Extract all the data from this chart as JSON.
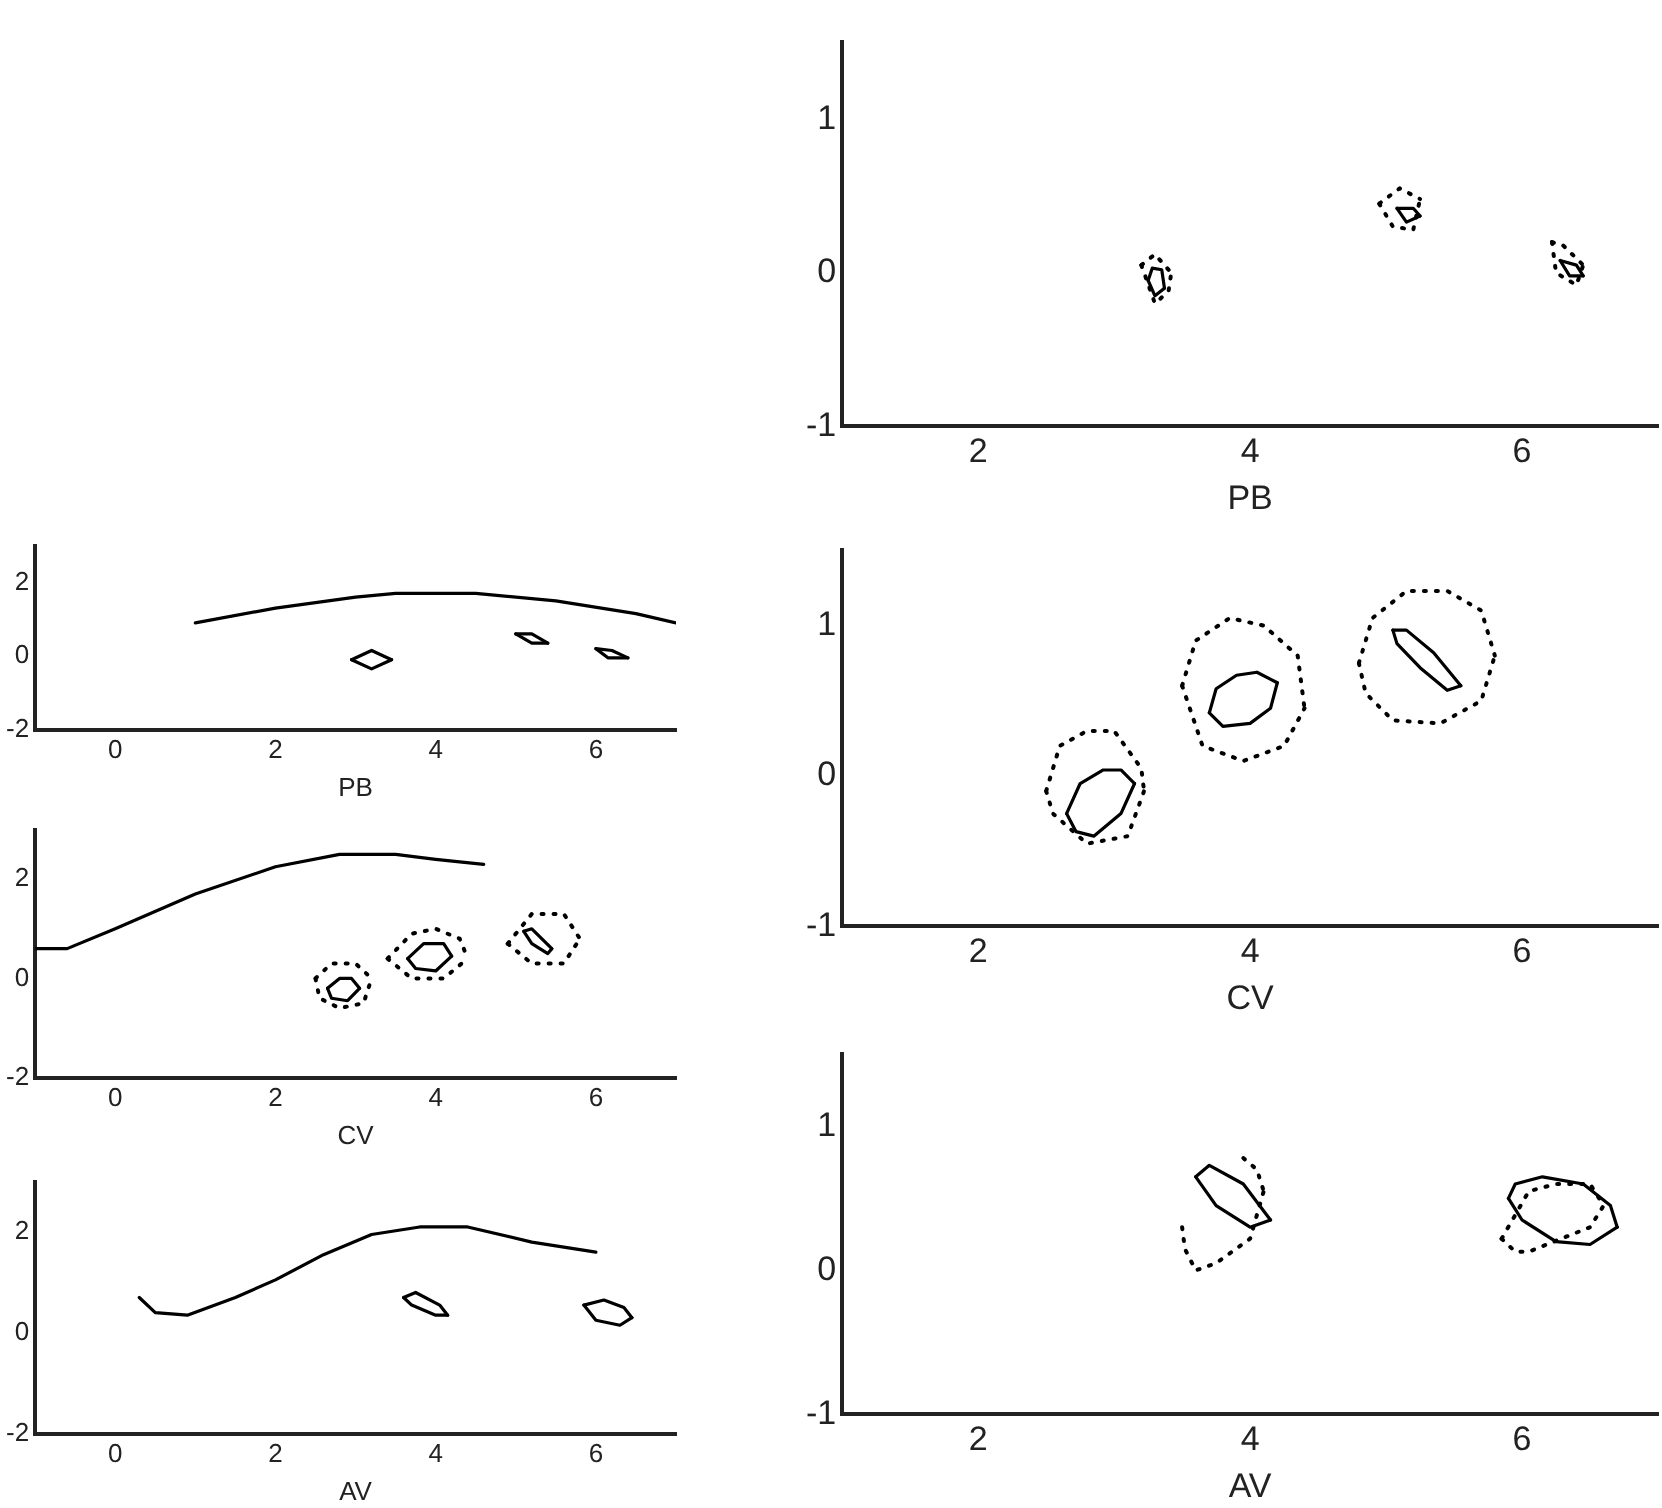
{
  "chart_data": [
    {
      "type": "line",
      "xlabel": "PB",
      "xlim": [
        -1,
        7
      ],
      "xticks": [
        0,
        2,
        4,
        6
      ],
      "ylim": [
        -2,
        3
      ],
      "yticks": [
        -2,
        0,
        2
      ],
      "grid": false,
      "marker": "none",
      "series": [
        {
          "color": "#000000",
          "line_style": "solid",
          "x": [
            1,
            2,
            3,
            3.5,
            4.5,
            5.5,
            6.5,
            7
          ],
          "values": [
            0.9,
            1.3,
            1.6,
            1.7,
            1.7,
            1.5,
            1.15,
            0.9
          ]
        },
        {
          "color": "#000000",
          "line_style": "solid",
          "x": [
            2.95,
            3.2,
            3.45
          ],
          "values": [
            -0.1,
            0.15,
            -0.1
          ]
        },
        {
          "color": "#000000",
          "line_style": "solid",
          "x": [
            2.95,
            3.2,
            3.45
          ],
          "values": [
            -0.1,
            -0.35,
            -0.1
          ]
        },
        {
          "color": "#000000",
          "line_style": "solid",
          "x": [
            5,
            5.2,
            5.4
          ],
          "values": [
            0.6,
            0.6,
            0.35
          ]
        },
        {
          "color": "#000000",
          "line_style": "solid",
          "x": [
            5,
            5.2,
            5.4
          ],
          "values": [
            0.6,
            0.35,
            0.35
          ]
        },
        {
          "color": "#000000",
          "line_style": "solid",
          "x": [
            6,
            6.2,
            6.4
          ],
          "values": [
            0.2,
            0.15,
            -0.05
          ]
        },
        {
          "color": "#000000",
          "line_style": "solid",
          "x": [
            6,
            6.15,
            6.4
          ],
          "values": [
            0.2,
            -0.05,
            -0.05
          ]
        }
      ]
    },
    {
      "type": "line",
      "xlabel": "CV",
      "xlim": [
        -1,
        7
      ],
      "xticks": [
        0,
        2,
        4,
        6
      ],
      "ylim": [
        -2,
        3
      ],
      "yticks": [
        -2,
        0,
        2
      ],
      "grid": false,
      "marker": "none",
      "series": [
        {
          "color": "#000000",
          "line_style": "solid",
          "x": [
            -1,
            -0.6,
            0,
            1,
            2,
            2.8,
            3.5,
            4,
            4.6
          ],
          "values": [
            0.6,
            0.6,
            1,
            1.7,
            2.25,
            2.5,
            2.5,
            2.4,
            2.3
          ]
        },
        {
          "color": "#000000",
          "line_style": "solid",
          "x": [
            2.65,
            2.8,
            2.95,
            3.05
          ],
          "values": [
            -0.2,
            0,
            0,
            -0.2
          ]
        },
        {
          "color": "#000000",
          "line_style": "solid",
          "x": [
            2.65,
            2.7,
            2.9,
            3.05
          ],
          "values": [
            -0.2,
            -0.4,
            -0.45,
            -0.2
          ]
        },
        {
          "color": "#000000",
          "line_style": "dotted",
          "x": [
            2.5,
            2.7,
            3,
            3.2
          ],
          "values": [
            0,
            0.3,
            0.3,
            0
          ]
        },
        {
          "color": "#000000",
          "line_style": "dotted",
          "x": [
            2.5,
            2.55,
            2.8,
            3.1,
            3.2
          ],
          "values": [
            0,
            -0.4,
            -0.6,
            -0.5,
            0
          ]
        },
        {
          "color": "#000000",
          "line_style": "solid",
          "x": [
            3.65,
            3.85,
            4.1,
            4.2
          ],
          "values": [
            0.4,
            0.7,
            0.7,
            0.45
          ]
        },
        {
          "color": "#000000",
          "line_style": "solid",
          "x": [
            3.65,
            3.75,
            4,
            4.2
          ],
          "values": [
            0.4,
            0.2,
            0.15,
            0.45
          ]
        },
        {
          "color": "#000000",
          "line_style": "dotted",
          "x": [
            3.4,
            3.7,
            4,
            4.3,
            4.4
          ],
          "values": [
            0.4,
            0.9,
            1,
            0.8,
            0.4
          ]
        },
        {
          "color": "#000000",
          "line_style": "dotted",
          "x": [
            3.4,
            3.7,
            4.1,
            4.4
          ],
          "values": [
            0.4,
            0,
            0,
            0.4
          ]
        },
        {
          "color": "#000000",
          "line_style": "solid",
          "x": [
            5.1,
            5.2,
            5.45
          ],
          "values": [
            0.95,
            1,
            0.6
          ]
        },
        {
          "color": "#000000",
          "line_style": "solid",
          "x": [
            5.1,
            5.2,
            5.4,
            5.45
          ],
          "values": [
            0.95,
            0.7,
            0.5,
            0.6
          ]
        },
        {
          "color": "#000000",
          "line_style": "dotted",
          "x": [
            4.9,
            5.2,
            5.6,
            5.8
          ],
          "values": [
            0.7,
            1.3,
            1.3,
            0.8
          ]
        },
        {
          "color": "#000000",
          "line_style": "dotted",
          "x": [
            4.9,
            5.2,
            5.6,
            5.8
          ],
          "values": [
            0.7,
            0.3,
            0.3,
            0.8
          ]
        }
      ]
    },
    {
      "type": "line",
      "xlabel": "AV",
      "xlim": [
        -1,
        7
      ],
      "xticks": [
        0,
        2,
        4,
        6
      ],
      "ylim": [
        -2,
        3
      ],
      "yticks": [
        -2,
        0,
        2
      ],
      "grid": false,
      "marker": "none",
      "series": [
        {
          "color": "#000000",
          "line_style": "solid",
          "x": [
            0.3,
            0.5,
            0.9,
            1.5,
            2,
            2.6,
            3.2,
            3.8,
            4.4,
            5.2,
            6
          ],
          "values": [
            0.7,
            0.4,
            0.35,
            0.7,
            1.05,
            1.55,
            1.95,
            2.1,
            2.1,
            1.8,
            1.6
          ]
        },
        {
          "color": "#000000",
          "line_style": "solid",
          "x": [
            3.6,
            3.75,
            4.05,
            4.15
          ],
          "values": [
            0.7,
            0.8,
            0.55,
            0.35
          ]
        },
        {
          "color": "#000000",
          "line_style": "solid",
          "x": [
            3.6,
            3.7,
            4,
            4.15
          ],
          "values": [
            0.7,
            0.55,
            0.35,
            0.35
          ]
        },
        {
          "color": "#000000",
          "line_style": "solid",
          "x": [
            5.85,
            6.1,
            6.35,
            6.45
          ],
          "values": [
            0.55,
            0.65,
            0.5,
            0.3
          ]
        },
        {
          "color": "#000000",
          "line_style": "solid",
          "x": [
            5.85,
            6,
            6.3,
            6.45
          ],
          "values": [
            0.55,
            0.25,
            0.15,
            0.3
          ]
        }
      ]
    },
    {
      "type": "line",
      "xlabel": "PB",
      "xlim": [
        1,
        7
      ],
      "xticks": [
        2,
        4,
        6
      ],
      "ylim": [
        -1,
        1.5
      ],
      "yticks": [
        -1,
        0,
        1
      ],
      "grid": false,
      "marker": "none",
      "series": [
        {
          "color": "#000000",
          "line_style": "solid",
          "x": [
            3.25,
            3.28,
            3.35,
            3.37
          ],
          "values": [
            -0.05,
            0.03,
            0.02,
            -0.1
          ]
        },
        {
          "color": "#000000",
          "line_style": "solid",
          "x": [
            3.25,
            3.3,
            3.37
          ],
          "values": [
            -0.05,
            -0.15,
            -0.1
          ]
        },
        {
          "color": "#000000",
          "line_style": "dotted",
          "x": [
            3.2,
            3.3,
            3.42
          ],
          "values": [
            0.05,
            0.12,
            0
          ]
        },
        {
          "color": "#000000",
          "line_style": "dotted",
          "x": [
            3.2,
            3.3,
            3.4,
            3.42
          ],
          "values": [
            0.05,
            -0.2,
            -0.12,
            0
          ]
        },
        {
          "color": "#000000",
          "line_style": "solid",
          "x": [
            5.08,
            5.2,
            5.25
          ],
          "values": [
            0.42,
            0.42,
            0.37
          ]
        },
        {
          "color": "#000000",
          "line_style": "solid",
          "x": [
            5.08,
            5.15,
            5.25
          ],
          "values": [
            0.42,
            0.33,
            0.37
          ]
        },
        {
          "color": "#000000",
          "line_style": "dotted",
          "x": [
            4.95,
            5.1,
            5.25
          ],
          "values": [
            0.45,
            0.55,
            0.48
          ]
        },
        {
          "color": "#000000",
          "line_style": "dotted",
          "x": [
            4.95,
            5.05,
            5.2,
            5.25
          ],
          "values": [
            0.45,
            0.3,
            0.28,
            0.48
          ]
        },
        {
          "color": "#000000",
          "line_style": "solid",
          "x": [
            6.28,
            6.4,
            6.45
          ],
          "values": [
            0.08,
            0.05,
            -0.02
          ]
        },
        {
          "color": "#000000",
          "line_style": "solid",
          "x": [
            6.28,
            6.35,
            6.45
          ],
          "values": [
            0.08,
            -0.02,
            -0.02
          ]
        },
        {
          "color": "#000000",
          "line_style": "dotted",
          "x": [
            6.22,
            6.3,
            6.45
          ],
          "values": [
            0.2,
            0.18,
            0.05
          ]
        },
        {
          "color": "#000000",
          "line_style": "dotted",
          "x": [
            6.22,
            6.25,
            6.4,
            6.45
          ],
          "values": [
            0.2,
            0,
            -0.08,
            0.05
          ]
        }
      ]
    },
    {
      "type": "line",
      "xlabel": "CV",
      "xlim": [
        1,
        7
      ],
      "xticks": [
        2,
        4,
        6
      ],
      "ylim": [
        -1,
        1.5
      ],
      "yticks": [
        -1,
        0,
        1
      ],
      "grid": false,
      "marker": "none",
      "series": [
        {
          "color": "#000000",
          "line_style": "solid",
          "x": [
            2.65,
            2.75,
            2.92,
            3.05,
            3.15
          ],
          "values": [
            -0.25,
            -0.05,
            0.04,
            0.04,
            -0.05
          ]
        },
        {
          "color": "#000000",
          "line_style": "solid",
          "x": [
            2.65,
            2.72,
            2.85,
            3.05,
            3.15
          ],
          "values": [
            -0.25,
            -0.37,
            -0.4,
            -0.25,
            -0.05
          ]
        },
        {
          "color": "#000000",
          "line_style": "dotted",
          "x": [
            2.5,
            2.6,
            2.8,
            3,
            3.2,
            3.22
          ],
          "values": [
            -0.1,
            0.2,
            0.3,
            0.3,
            0.05,
            -0.1
          ]
        },
        {
          "color": "#000000",
          "line_style": "dotted",
          "x": [
            2.5,
            2.55,
            2.8,
            3.1,
            3.22
          ],
          "values": [
            -0.1,
            -0.25,
            -0.45,
            -0.4,
            -0.1
          ]
        },
        {
          "color": "#000000",
          "line_style": "solid",
          "x": [
            3.7,
            3.75,
            3.9,
            4.05,
            4.2
          ],
          "values": [
            0.42,
            0.58,
            0.67,
            0.69,
            0.62
          ]
        },
        {
          "color": "#000000",
          "line_style": "solid",
          "x": [
            3.7,
            3.8,
            4,
            4.15,
            4.2
          ],
          "values": [
            0.42,
            0.33,
            0.35,
            0.45,
            0.62
          ]
        },
        {
          "color": "#000000",
          "line_style": "dotted",
          "x": [
            3.5,
            3.6,
            3.85,
            4.1,
            4.35,
            4.4
          ],
          "values": [
            0.6,
            0.9,
            1.05,
            1,
            0.8,
            0.45
          ]
        },
        {
          "color": "#000000",
          "line_style": "dotted",
          "x": [
            3.5,
            3.65,
            3.95,
            4.25,
            4.4
          ],
          "values": [
            0.6,
            0.2,
            0.1,
            0.2,
            0.45
          ]
        },
        {
          "color": "#000000",
          "line_style": "solid",
          "x": [
            5.05,
            5.15,
            5.35,
            5.55
          ],
          "values": [
            0.97,
            0.97,
            0.82,
            0.6
          ]
        },
        {
          "color": "#000000",
          "line_style": "solid",
          "x": [
            5.05,
            5.08,
            5.25,
            5.45,
            5.55
          ],
          "values": [
            0.97,
            0.88,
            0.72,
            0.57,
            0.6
          ]
        },
        {
          "color": "#000000",
          "line_style": "dotted",
          "x": [
            4.8,
            4.9,
            5.15,
            5.45,
            5.7,
            5.8
          ],
          "values": [
            0.75,
            1.05,
            1.23,
            1.23,
            1.1,
            0.8
          ]
        },
        {
          "color": "#000000",
          "line_style": "dotted",
          "x": [
            4.8,
            4.85,
            5.05,
            5.4,
            5.7,
            5.8
          ],
          "values": [
            0.75,
            0.55,
            0.37,
            0.35,
            0.5,
            0.8
          ]
        }
      ]
    },
    {
      "type": "line",
      "xlabel": "AV",
      "xlim": [
        1,
        7
      ],
      "xticks": [
        2,
        4,
        6
      ],
      "ylim": [
        -1,
        1.5
      ],
      "yticks": [
        -1,
        0,
        1
      ],
      "grid": false,
      "marker": "none",
      "series": [
        {
          "color": "#000000",
          "line_style": "solid",
          "x": [
            3.6,
            3.7,
            3.95,
            4.15
          ],
          "values": [
            0.65,
            0.73,
            0.6,
            0.35
          ]
        },
        {
          "color": "#000000",
          "line_style": "solid",
          "x": [
            3.6,
            3.75,
            4,
            4.15
          ],
          "values": [
            0.65,
            0.45,
            0.3,
            0.35
          ]
        },
        {
          "color": "#000000",
          "line_style": "dotted",
          "x": [
            3.95,
            4.05,
            4.1
          ],
          "values": [
            0.78,
            0.7,
            0.55
          ]
        },
        {
          "color": "#000000",
          "line_style": "dotted",
          "x": [
            3.5,
            3.52,
            3.6,
            3.75,
            4,
            4.1
          ],
          "values": [
            0.3,
            0.15,
            0,
            0.05,
            0.22,
            0.55
          ]
        },
        {
          "color": "#000000",
          "line_style": "solid",
          "x": [
            5.9,
            5.95,
            6.15,
            6.45,
            6.65,
            6.7
          ],
          "values": [
            0.5,
            0.6,
            0.65,
            0.6,
            0.45,
            0.3
          ]
        },
        {
          "color": "#000000",
          "line_style": "solid",
          "x": [
            5.9,
            6,
            6.25,
            6.5,
            6.7
          ],
          "values": [
            0.5,
            0.35,
            0.2,
            0.18,
            0.3
          ]
        },
        {
          "color": "#000000",
          "line_style": "dotted",
          "x": [
            5.85,
            6.05,
            6.25,
            6.5,
            6.6
          ],
          "values": [
            0.22,
            0.55,
            0.6,
            0.6,
            0.45
          ]
        },
        {
          "color": "#000000",
          "line_style": "dotted",
          "x": [
            5.85,
            5.95,
            6.05,
            6.5,
            6.6
          ],
          "values": [
            0.22,
            0.13,
            0.13,
            0.3,
            0.45
          ]
        }
      ]
    }
  ]
}
